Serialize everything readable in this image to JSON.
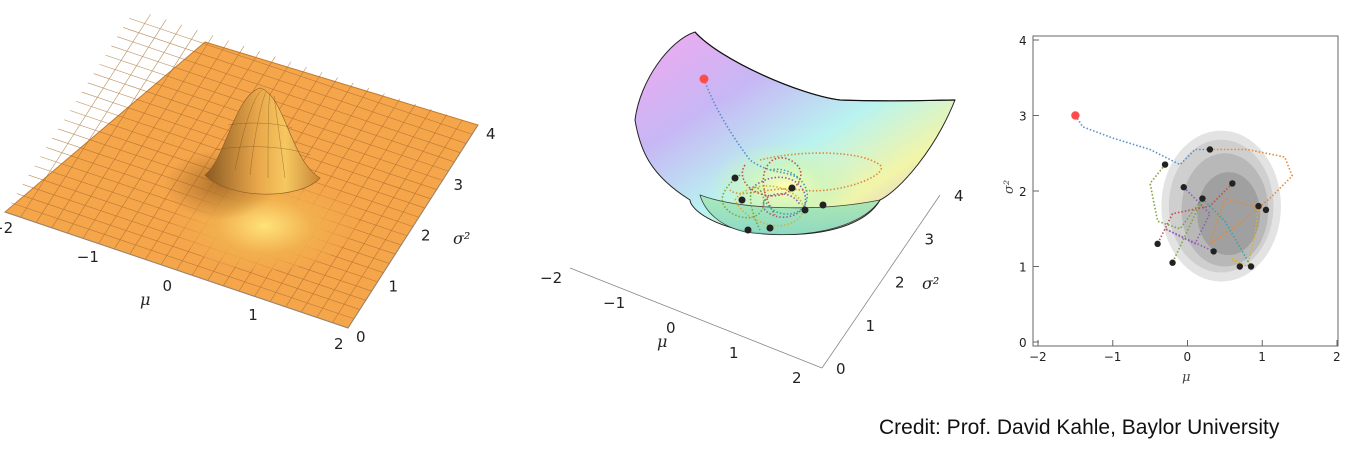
{
  "credit": "Credit: Prof. David Kahle, Baylor University",
  "colors": {
    "surface_orange": "#f5a54a",
    "mesh_line": "#7a5a3a",
    "start_point": "#ff4d4d",
    "end_point": "#222222",
    "traj_blue": "#5b8fc9",
    "traj_orange": "#e08a3c",
    "traj_green": "#7da43a",
    "traj_purple": "#8e5fb3",
    "traj_red": "#c0504d",
    "traj_teal": "#3aa6a0",
    "traj_gold": "#d6b23a"
  },
  "chart_data": [
    {
      "type": "surface",
      "description_shape": "gaussian-peak",
      "x_axis": {
        "label": "μ",
        "ticks": [
          "−2",
          "−1",
          "0",
          "1",
          "2"
        ],
        "range": [
          -2,
          2
        ]
      },
      "y_axis": {
        "label": "σ²",
        "ticks": [
          "0",
          "1",
          "2",
          "3",
          "4"
        ],
        "range": [
          0,
          4
        ]
      },
      "peak": {
        "mu": 0,
        "sigma2": 1.5
      }
    },
    {
      "type": "surface",
      "description_shape": "bowl-with-trajectories",
      "x_axis": {
        "label": "μ",
        "ticks": [
          "−2",
          "−1",
          "0",
          "1",
          "2"
        ],
        "range": [
          -2,
          2
        ]
      },
      "y_axis": {
        "label": "σ²",
        "ticks": [
          "0",
          "1",
          "2",
          "3",
          "4"
        ],
        "range": [
          0,
          4
        ]
      },
      "start": {
        "mu": -1.5,
        "sigma2": 3.0
      }
    },
    {
      "type": "scatter",
      "x_axis": {
        "label": "μ",
        "ticks": [
          "−2",
          "−1",
          "0",
          "1",
          "2"
        ],
        "range": [
          -2,
          2
        ]
      },
      "y_axis": {
        "label": "σ²",
        "ticks": [
          "0",
          "1",
          "2",
          "3",
          "4"
        ],
        "range": [
          0,
          4
        ]
      },
      "start": {
        "x": -1.5,
        "y": 3.0
      },
      "end_points": [
        {
          "x": 0.3,
          "y": 2.55
        },
        {
          "x": -0.3,
          "y": 2.35
        },
        {
          "x": 0.6,
          "y": 2.1
        },
        {
          "x": -0.05,
          "y": 2.05
        },
        {
          "x": 0.95,
          "y": 1.8
        },
        {
          "x": 1.05,
          "y": 1.75
        },
        {
          "x": -0.4,
          "y": 1.3
        },
        {
          "x": 0.35,
          "y": 1.2
        },
        {
          "x": 0.7,
          "y": 1.0
        },
        {
          "x": 0.85,
          "y": 1.0
        },
        {
          "x": -0.2,
          "y": 1.05
        },
        {
          "x": 0.2,
          "y": 1.9
        }
      ]
    }
  ]
}
